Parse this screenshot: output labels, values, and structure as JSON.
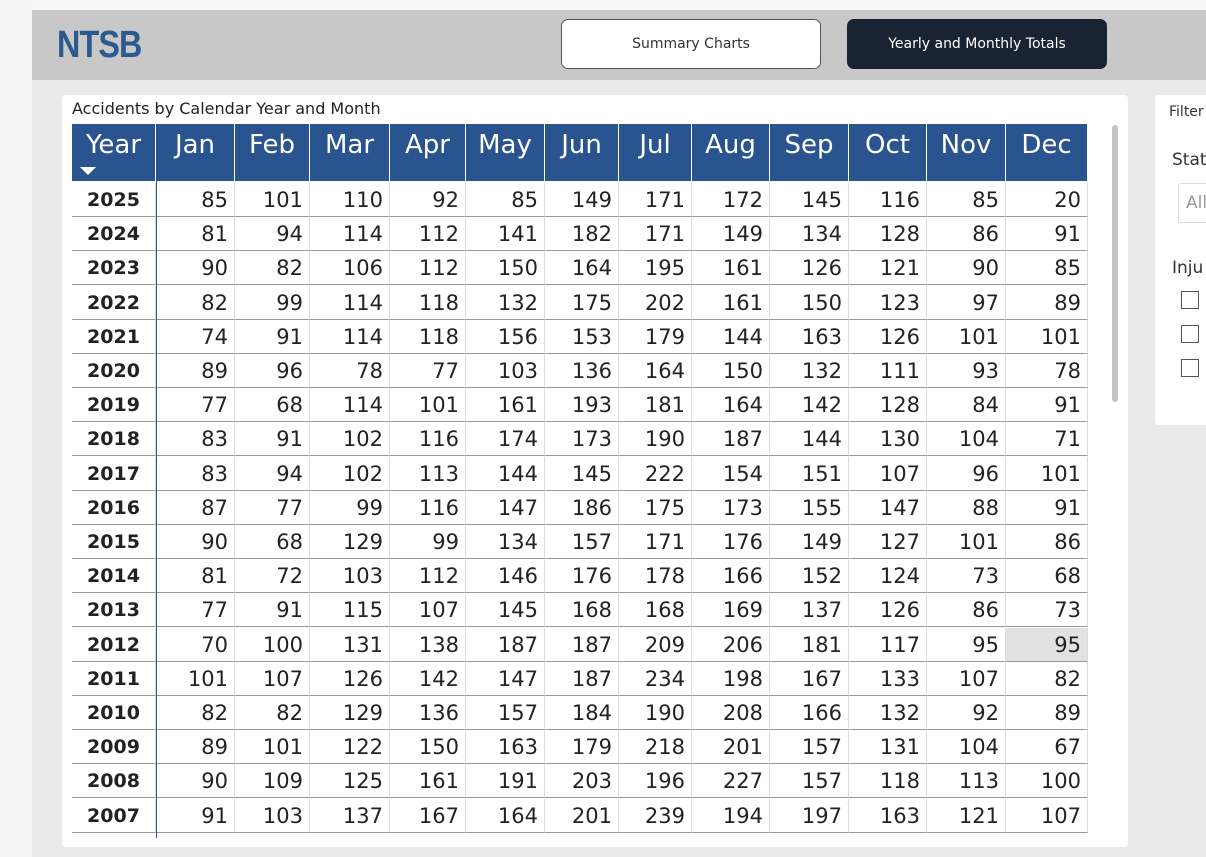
{
  "header": {
    "logo": "NTSB",
    "tabs": [
      "Summary Charts",
      "Yearly and Monthly Totals"
    ]
  },
  "table": {
    "title": "Accidents by Calendar Year and Month",
    "columns": [
      "Year",
      "Jan",
      "Feb",
      "Mar",
      "Apr",
      "May",
      "Jun",
      "Jul",
      "Aug",
      "Sep",
      "Oct",
      "Nov",
      "Dec"
    ],
    "rows": [
      [
        2025,
        85,
        101,
        110,
        92,
        85,
        149,
        171,
        172,
        145,
        116,
        85,
        20
      ],
      [
        2024,
        81,
        94,
        114,
        112,
        141,
        182,
        171,
        149,
        134,
        128,
        86,
        91
      ],
      [
        2023,
        90,
        82,
        106,
        112,
        150,
        164,
        195,
        161,
        126,
        121,
        90,
        85
      ],
      [
        2022,
        82,
        99,
        114,
        118,
        132,
        175,
        202,
        161,
        150,
        123,
        97,
        89
      ],
      [
        2021,
        74,
        91,
        114,
        118,
        156,
        153,
        179,
        144,
        163,
        126,
        101,
        101
      ],
      [
        2020,
        89,
        96,
        78,
        77,
        103,
        136,
        164,
        150,
        132,
        111,
        93,
        78
      ],
      [
        2019,
        77,
        68,
        114,
        101,
        161,
        193,
        181,
        164,
        142,
        128,
        84,
        91
      ],
      [
        2018,
        83,
        91,
        102,
        116,
        174,
        173,
        190,
        187,
        144,
        130,
        104,
        71
      ],
      [
        2017,
        83,
        94,
        102,
        113,
        144,
        145,
        222,
        154,
        151,
        107,
        96,
        101
      ],
      [
        2016,
        87,
        77,
        99,
        116,
        147,
        186,
        175,
        173,
        155,
        147,
        88,
        91
      ],
      [
        2015,
        90,
        68,
        129,
        99,
        134,
        157,
        171,
        176,
        149,
        127,
        101,
        86
      ],
      [
        2014,
        81,
        72,
        103,
        112,
        146,
        176,
        178,
        166,
        152,
        124,
        73,
        68
      ],
      [
        2013,
        77,
        91,
        115,
        107,
        145,
        168,
        168,
        169,
        137,
        126,
        86,
        73
      ],
      [
        2012,
        70,
        100,
        131,
        138,
        187,
        187,
        209,
        206,
        181,
        117,
        95,
        95
      ],
      [
        2011,
        101,
        107,
        126,
        142,
        147,
        187,
        234,
        198,
        167,
        133,
        107,
        82
      ],
      [
        2010,
        82,
        82,
        129,
        136,
        157,
        184,
        190,
        208,
        166,
        132,
        92,
        89
      ],
      [
        2009,
        89,
        101,
        122,
        150,
        163,
        179,
        218,
        201,
        157,
        131,
        104,
        67
      ],
      [
        2008,
        90,
        109,
        125,
        161,
        191,
        203,
        196,
        227,
        157,
        118,
        113,
        100
      ],
      [
        2007,
        91,
        103,
        137,
        167,
        164,
        201,
        239,
        194,
        197,
        163,
        121,
        107
      ]
    ]
  },
  "filters": {
    "title": "Filter",
    "state_label": "Stat",
    "state_value": "All",
    "injury_label": "Inju"
  }
}
